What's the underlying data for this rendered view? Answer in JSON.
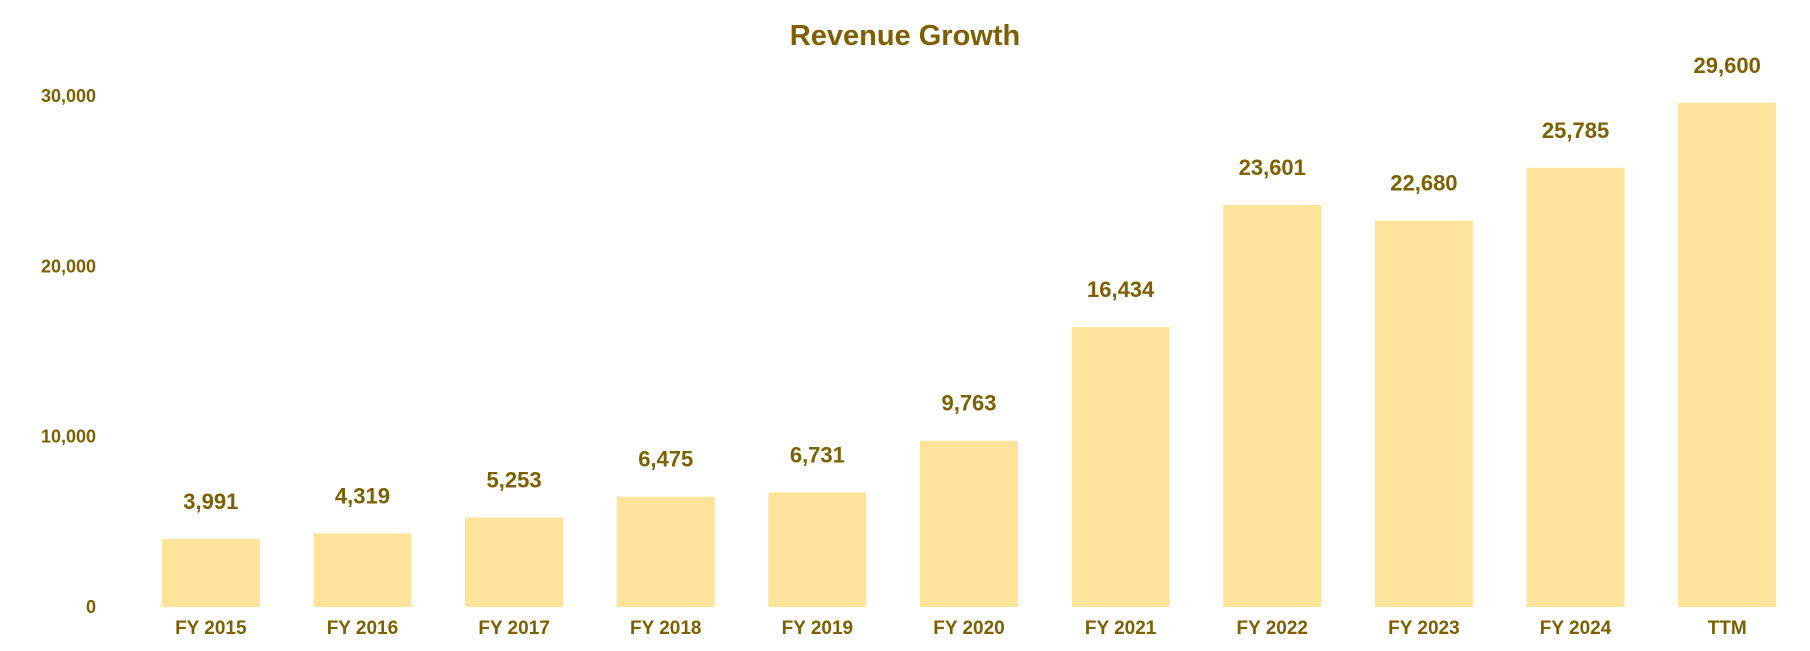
{
  "chart_data": {
    "type": "bar",
    "title": "Revenue Growth",
    "xlabel": "",
    "ylabel": "",
    "categories": [
      "FY 2015",
      "FY 2016",
      "FY 2017",
      "FY 2018",
      "FY 2019",
      "FY 2020",
      "FY 2021",
      "FY 2022",
      "FY 2023",
      "FY 2024",
      "TTM"
    ],
    "values": [
      3991,
      4319,
      5253,
      6475,
      6731,
      9763,
      16434,
      23601,
      22680,
      25785,
      29600
    ],
    "value_labels": [
      "3,991",
      "4,319",
      "5,253",
      "6,475",
      "6,731",
      "9,763",
      "16,434",
      "23,601",
      "22,680",
      "25,785",
      "29,600"
    ],
    "yticks": [
      0,
      10000,
      20000,
      30000
    ],
    "ytick_labels": [
      "0",
      "10,000",
      "20,000",
      "30,000"
    ],
    "ylim": [
      0,
      30000
    ],
    "grid": false,
    "legend": "none",
    "colors": {
      "bar": "#fde49a",
      "text": "#7d6000"
    }
  }
}
